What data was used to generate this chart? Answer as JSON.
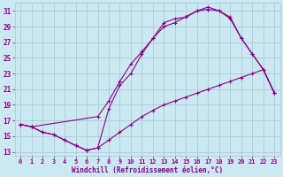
{
  "xlabel": "Windchill (Refroidissement éolien,°C)",
  "bg_color": "#cce8f0",
  "grid_color": "#aaccdd",
  "line_color": "#880088",
  "xlim": [
    -0.5,
    23.5
  ],
  "ylim": [
    12.5,
    32.0
  ],
  "yticks": [
    13,
    15,
    17,
    19,
    21,
    23,
    25,
    27,
    29,
    31
  ],
  "xticks": [
    0,
    1,
    2,
    3,
    4,
    5,
    6,
    7,
    8,
    9,
    10,
    11,
    12,
    13,
    14,
    15,
    16,
    17,
    18,
    19,
    20,
    21,
    22,
    23
  ],
  "line1_x": [
    0,
    1,
    2,
    3,
    4,
    5,
    6,
    7,
    8,
    9,
    10,
    11,
    12,
    13,
    14,
    15,
    16,
    17,
    18,
    19,
    20,
    21,
    22,
    23
  ],
  "line1_y": [
    16.5,
    16.2,
    15.5,
    15.2,
    14.5,
    13.8,
    13.2,
    13.5,
    18.5,
    21.5,
    23.0,
    25.5,
    27.5,
    29.5,
    30.0,
    30.2,
    31.0,
    31.5,
    31.0,
    30.0,
    27.5,
    25.5,
    23.5,
    20.5
  ],
  "line2_x": [
    0,
    1,
    2,
    3,
    4,
    5,
    6,
    7,
    8,
    9,
    10,
    11,
    12,
    13,
    14,
    15,
    16,
    17,
    18,
    19,
    20,
    21,
    22,
    23
  ],
  "line2_y": [
    16.5,
    16.2,
    15.5,
    15.2,
    14.5,
    13.8,
    13.2,
    13.5,
    14.5,
    15.5,
    16.5,
    17.5,
    18.3,
    19.0,
    19.5,
    20.0,
    20.5,
    21.0,
    21.5,
    22.0,
    22.5,
    23.0,
    23.5,
    20.5
  ],
  "line3_x": [
    0,
    1,
    7,
    8,
    9,
    10,
    11,
    12,
    13,
    14,
    15,
    16,
    17,
    18,
    19,
    20,
    21,
    22,
    23
  ],
  "line3_y": [
    16.5,
    16.2,
    17.5,
    19.5,
    22.0,
    24.2,
    25.8,
    27.5,
    29.0,
    29.5,
    30.3,
    31.0,
    31.2,
    31.0,
    30.2,
    27.5,
    25.5,
    23.5,
    20.5
  ]
}
